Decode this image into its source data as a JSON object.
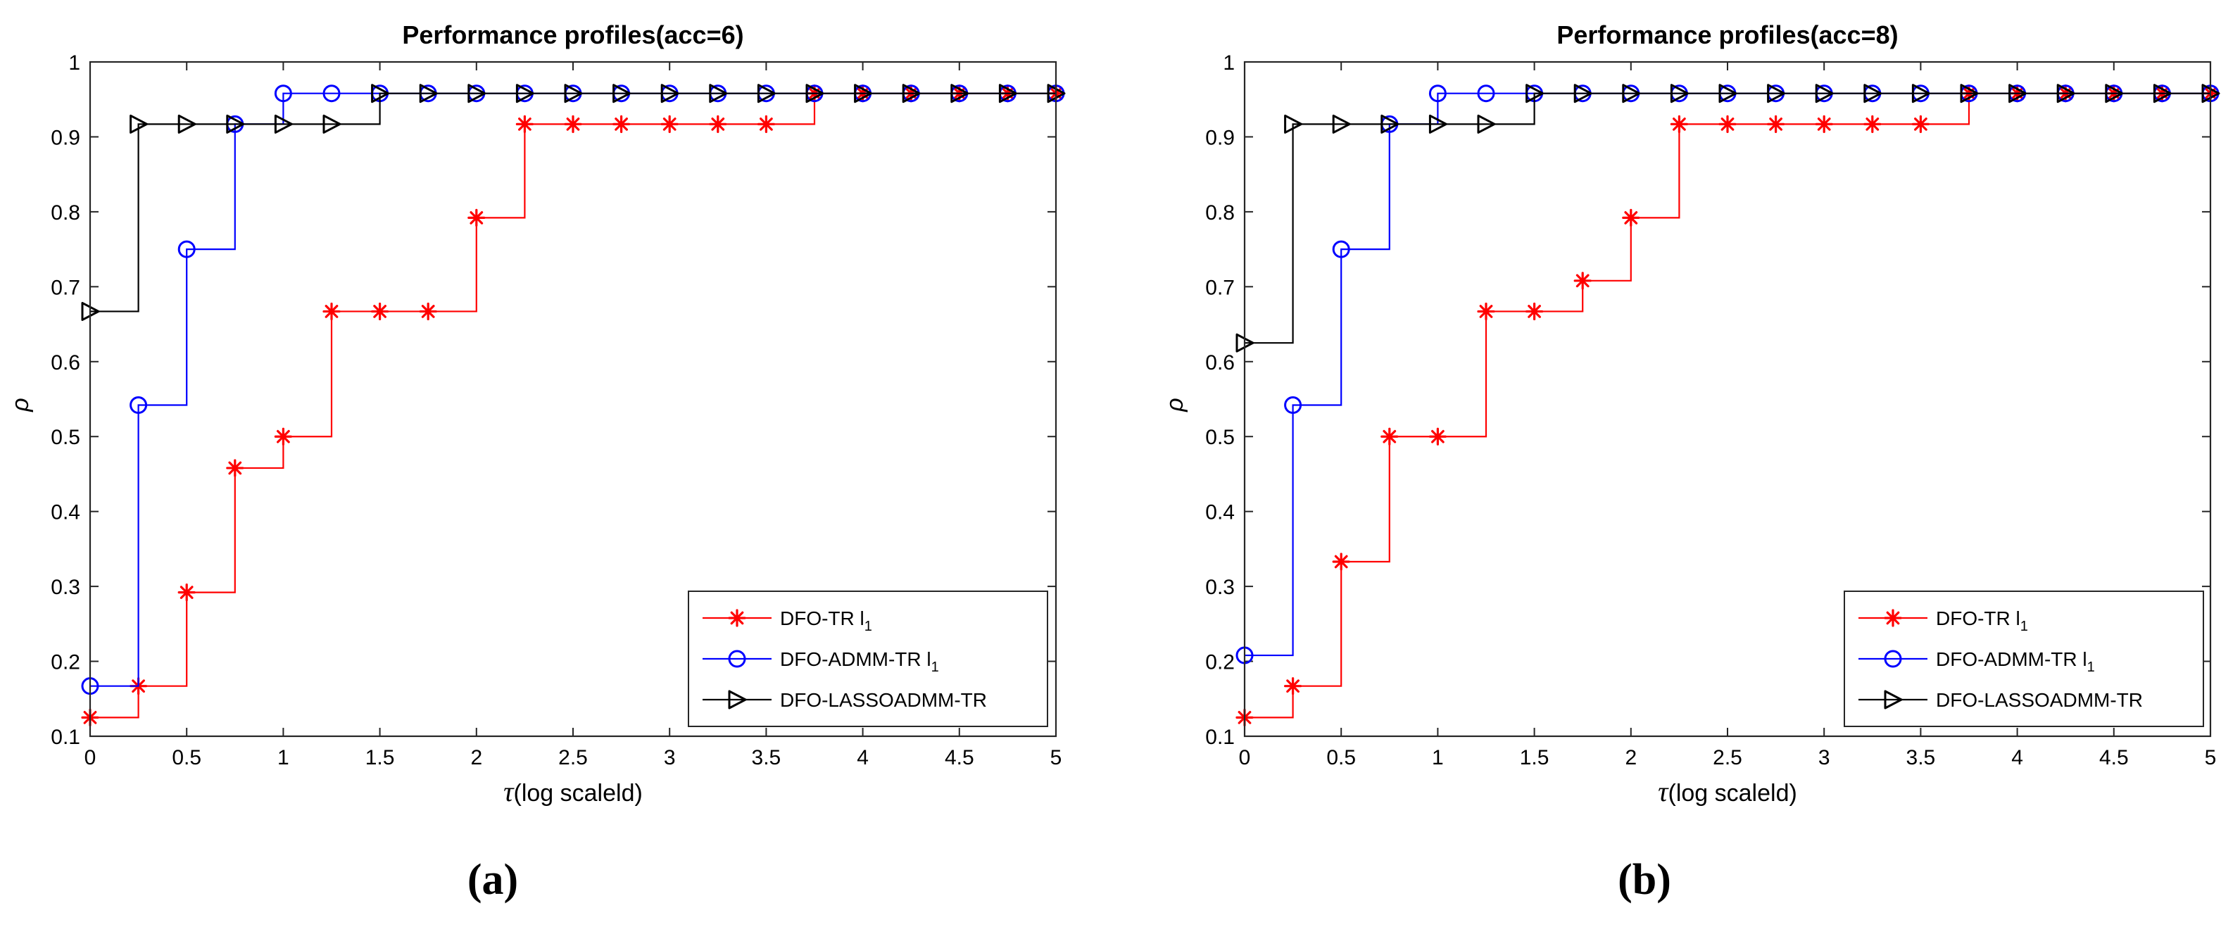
{
  "chart_data": [
    {
      "type": "line",
      "title": "Performance profiles(acc=6)",
      "xlabel_symbol": "τ",
      "xlabel": "(log scaleld)",
      "ylabel": "ρ",
      "xlim": [
        0,
        5
      ],
      "ylim": [
        0.1,
        1
      ],
      "xticks": [
        "0",
        "0.5",
        "1",
        "1.5",
        "2",
        "2.5",
        "3",
        "3.5",
        "4",
        "4.5",
        "5"
      ],
      "yticks": [
        "0.1",
        "0.2",
        "0.3",
        "0.4",
        "0.5",
        "0.6",
        "0.7",
        "0.8",
        "0.9",
        "1"
      ],
      "grid": false,
      "legend_position": "bottom-right",
      "caption": "(a)",
      "series": [
        {
          "name": "DFO-TR l",
          "name_subscript": "1",
          "color": "#ff0000",
          "marker": "asterisk",
          "x": [
            0,
            0.25,
            0.5,
            0.75,
            1,
            1.25,
            1.5,
            1.75,
            2,
            2.25,
            2.5,
            2.75,
            3,
            3.25,
            3.5,
            3.75,
            4,
            4.25,
            4.5,
            4.75,
            5
          ],
          "y": [
            0.125,
            0.167,
            0.292,
            0.458,
            0.5,
            0.667,
            0.667,
            0.667,
            0.792,
            0.917,
            0.917,
            0.917,
            0.917,
            0.917,
            0.917,
            0.958,
            0.958,
            0.958,
            0.958,
            0.958,
            0.958
          ]
        },
        {
          "name": "DFO-ADMM-TR l",
          "name_subscript": "1",
          "color": "#0000ff",
          "marker": "circle",
          "x": [
            0,
            0.25,
            0.5,
            0.75,
            1,
            1.25,
            1.5,
            1.75,
            2,
            2.25,
            2.5,
            2.75,
            3,
            3.25,
            3.5,
            3.75,
            4,
            4.25,
            4.5,
            4.75,
            5
          ],
          "y": [
            0.167,
            0.542,
            0.75,
            0.917,
            0.958,
            0.958,
            0.958,
            0.958,
            0.958,
            0.958,
            0.958,
            0.958,
            0.958,
            0.958,
            0.958,
            0.958,
            0.958,
            0.958,
            0.958,
            0.958,
            0.958
          ]
        },
        {
          "name": "DFO-LASSOADMM-TR",
          "name_subscript": "",
          "color": "#000000",
          "marker": "triangle-right",
          "x": [
            0,
            0.25,
            0.5,
            0.75,
            1,
            1.25,
            1.5,
            1.75,
            2,
            2.25,
            2.5,
            2.75,
            3,
            3.25,
            3.5,
            3.75,
            4,
            4.25,
            4.5,
            4.75,
            5
          ],
          "y": [
            0.667,
            0.917,
            0.917,
            0.917,
            0.917,
            0.917,
            0.958,
            0.958,
            0.958,
            0.958,
            0.958,
            0.958,
            0.958,
            0.958,
            0.958,
            0.958,
            0.958,
            0.958,
            0.958,
            0.958,
            0.958
          ]
        }
      ]
    },
    {
      "type": "line",
      "title": "Performance profiles(acc=8)",
      "xlabel_symbol": "τ",
      "xlabel": "(log scaleld)",
      "ylabel": "ρ",
      "xlim": [
        0,
        5
      ],
      "ylim": [
        0.1,
        1
      ],
      "xticks": [
        "0",
        "0.5",
        "1",
        "1.5",
        "2",
        "2.5",
        "3",
        "3.5",
        "4",
        "4.5",
        "5"
      ],
      "yticks": [
        "0.1",
        "0.2",
        "0.3",
        "0.4",
        "0.5",
        "0.6",
        "0.7",
        "0.8",
        "0.9",
        "1"
      ],
      "grid": false,
      "legend_position": "bottom-right",
      "caption": "(b)",
      "series": [
        {
          "name": "DFO-TR l",
          "name_subscript": "1",
          "color": "#ff0000",
          "marker": "asterisk",
          "x": [
            0,
            0.25,
            0.5,
            0.75,
            1,
            1.25,
            1.5,
            1.75,
            2,
            2.25,
            2.5,
            2.75,
            3,
            3.25,
            3.5,
            3.75,
            4,
            4.25,
            4.5,
            4.75,
            5
          ],
          "y": [
            0.125,
            0.167,
            0.333,
            0.5,
            0.5,
            0.667,
            0.667,
            0.708,
            0.792,
            0.917,
            0.917,
            0.917,
            0.917,
            0.917,
            0.917,
            0.958,
            0.958,
            0.958,
            0.958,
            0.958,
            0.958
          ]
        },
        {
          "name": "DFO-ADMM-TR l",
          "name_subscript": "1",
          "color": "#0000ff",
          "marker": "circle",
          "x": [
            0,
            0.25,
            0.5,
            0.75,
            1,
            1.25,
            1.5,
            1.75,
            2,
            2.25,
            2.5,
            2.75,
            3,
            3.25,
            3.5,
            3.75,
            4,
            4.25,
            4.5,
            4.75,
            5
          ],
          "y": [
            0.208,
            0.542,
            0.75,
            0.917,
            0.958,
            0.958,
            0.958,
            0.958,
            0.958,
            0.958,
            0.958,
            0.958,
            0.958,
            0.958,
            0.958,
            0.958,
            0.958,
            0.958,
            0.958,
            0.958,
            0.958
          ]
        },
        {
          "name": "DFO-LASSOADMM-TR",
          "name_subscript": "",
          "color": "#000000",
          "marker": "triangle-right",
          "x": [
            0,
            0.25,
            0.5,
            0.75,
            1,
            1.25,
            1.5,
            1.75,
            2,
            2.25,
            2.5,
            2.75,
            3,
            3.25,
            3.5,
            3.75,
            4,
            4.25,
            4.5,
            4.75,
            5
          ],
          "y": [
            0.625,
            0.917,
            0.917,
            0.917,
            0.917,
            0.917,
            0.958,
            0.958,
            0.958,
            0.958,
            0.958,
            0.958,
            0.958,
            0.958,
            0.958,
            0.958,
            0.958,
            0.958,
            0.958,
            0.958,
            0.958
          ]
        }
      ]
    }
  ]
}
